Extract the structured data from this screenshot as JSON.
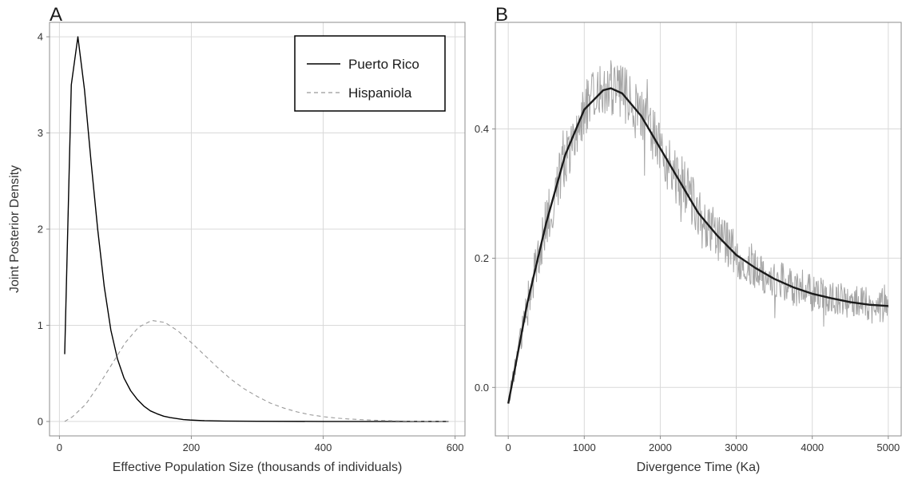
{
  "chart_data": [
    {
      "panel_label": "A",
      "type": "line",
      "xlabel": "Effective Population Size (thousands of individuals)",
      "ylabel": "Joint Posterior Density",
      "xlim": [
        -15,
        615
      ],
      "ylim": [
        -0.15,
        4.15
      ],
      "xticks": [
        0,
        200,
        400,
        600
      ],
      "yticks": [
        0,
        1,
        2,
        3,
        4
      ],
      "grid": true,
      "legend_position": "top-right",
      "series": [
        {
          "name": "Puerto Rico",
          "style": "solid",
          "color": "#000000",
          "x": [
            8,
            18,
            28,
            38,
            48,
            58,
            68,
            78,
            88,
            98,
            108,
            118,
            128,
            138,
            148,
            158,
            168,
            178,
            188,
            198,
            220,
            250,
            300,
            400,
            500,
            590
          ],
          "y": [
            0.7,
            3.5,
            4.0,
            3.45,
            2.7,
            2.0,
            1.4,
            0.95,
            0.65,
            0.45,
            0.32,
            0.23,
            0.16,
            0.11,
            0.08,
            0.055,
            0.04,
            0.03,
            0.02,
            0.015,
            0.008,
            0.004,
            0.002,
            0.0,
            0.0,
            0.0
          ]
        },
        {
          "name": "Hispaniola",
          "style": "dashed",
          "color": "#999999",
          "x": [
            8,
            20,
            40,
            60,
            80,
            100,
            120,
            140,
            160,
            180,
            200,
            220,
            240,
            260,
            280,
            300,
            320,
            340,
            360,
            380,
            400,
            420,
            440,
            460,
            480,
            500,
            520,
            540,
            560,
            590
          ],
          "y": [
            0.0,
            0.05,
            0.18,
            0.38,
            0.6,
            0.82,
            0.98,
            1.05,
            1.03,
            0.94,
            0.82,
            0.69,
            0.56,
            0.44,
            0.34,
            0.26,
            0.19,
            0.14,
            0.1,
            0.07,
            0.05,
            0.035,
            0.025,
            0.018,
            0.012,
            0.008,
            0.005,
            0.003,
            0.002,
            0.001
          ]
        }
      ]
    },
    {
      "panel_label": "B",
      "type": "line",
      "xlabel": "Divergence Time (Ka)",
      "ylabel": "",
      "xlim": [
        -170,
        5170
      ],
      "ylim": [
        -0.075,
        0.565
      ],
      "xticks": [
        0,
        1000,
        2000,
        3000,
        4000,
        5000
      ],
      "yticks": [
        0.0,
        0.2,
        0.4
      ],
      "y_tick_format": "0.0",
      "grid": true,
      "series": [
        {
          "name": "",
          "style": "smooth",
          "color": "#1a1a1a",
          "x": [
            0,
            250,
            500,
            750,
            1000,
            1250,
            1350,
            1500,
            1750,
            2000,
            2250,
            2500,
            2750,
            3000,
            3250,
            3500,
            3750,
            4000,
            4250,
            4500,
            4750,
            5000
          ],
          "y": [
            -0.025,
            0.13,
            0.255,
            0.36,
            0.43,
            0.46,
            0.463,
            0.455,
            0.42,
            0.37,
            0.32,
            0.27,
            0.235,
            0.205,
            0.185,
            0.168,
            0.155,
            0.145,
            0.138,
            0.132,
            0.128,
            0.126
          ]
        },
        {
          "name": "",
          "style": "noisy",
          "color": "#a6a6a6",
          "x": [
            0,
            250,
            500,
            750,
            1000,
            1250,
            1350,
            1500,
            1750,
            2000,
            2250,
            2500,
            2750,
            3000,
            3250,
            3500,
            3750,
            4000,
            4250,
            4500,
            4750,
            5000
          ],
          "y": [
            -0.025,
            0.13,
            0.255,
            0.36,
            0.43,
            0.46,
            0.463,
            0.455,
            0.42,
            0.37,
            0.32,
            0.27,
            0.235,
            0.205,
            0.185,
            0.168,
            0.155,
            0.145,
            0.138,
            0.132,
            0.128,
            0.126
          ],
          "noise_amplitude": 0.035
        }
      ]
    }
  ],
  "colors": {
    "panel_background": "#ffffff",
    "grid": "#d9d9d9",
    "frame": "#8c8c8c",
    "text": "#333333",
    "legend_border": "#000000"
  }
}
